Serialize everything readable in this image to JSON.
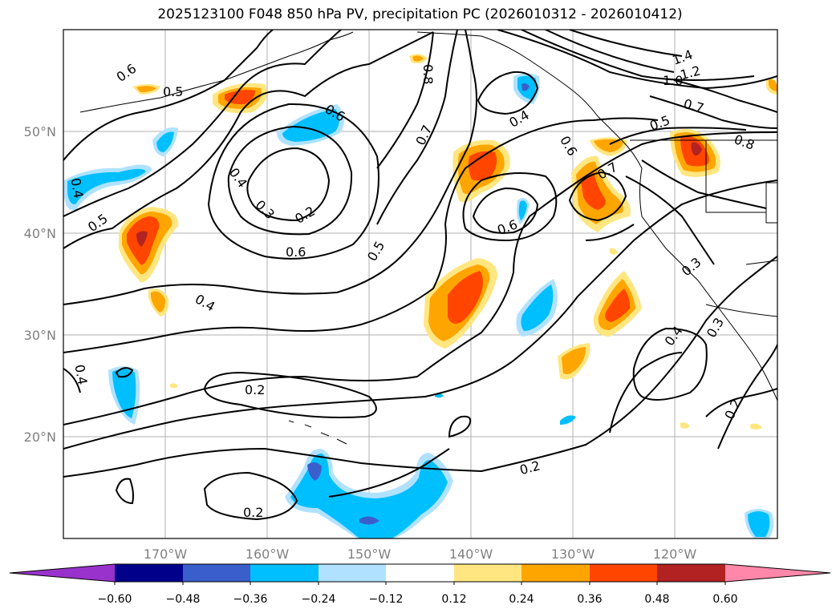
{
  "title": "2025123100 F048 850 hPa PV, precipitation PC (2026010312 - 2026010412)",
  "map": {
    "lon_range": [
      -180,
      -110
    ],
    "lat_range": [
      10,
      60
    ],
    "lat_ticks": [
      {
        "value": 50,
        "label": "50°N"
      },
      {
        "value": 40,
        "label": "40°N"
      },
      {
        "value": 30,
        "label": "30°N"
      },
      {
        "value": 20,
        "label": "20°N"
      }
    ],
    "lon_ticks": [
      {
        "value": -170,
        "label": "170°W"
      },
      {
        "value": -160,
        "label": "160°W"
      },
      {
        "value": -150,
        "label": "150°W"
      },
      {
        "value": -140,
        "label": "140°W"
      },
      {
        "value": -130,
        "label": "130°W"
      },
      {
        "value": -120,
        "label": "120°W"
      }
    ],
    "contour_labels": [
      "0.6",
      "0.5",
      "0.6",
      "0.4",
      "0.3",
      "0.2",
      "0.6",
      "0.5",
      "0.7",
      "0.8",
      "0.4",
      "0.6",
      "0.7",
      "0.6",
      "1.4",
      "1.2",
      "1.0",
      "0.7",
      "0.5",
      "0.8",
      "0.4",
      "0.5",
      "0.4",
      "0.2",
      "0.4",
      "0.3",
      "0.3",
      "0.2",
      "0.2",
      "0.2",
      "0.4"
    ]
  },
  "colorbar": {
    "ticks": [
      "−0.60",
      "−0.48",
      "−0.36",
      "−0.24",
      "−0.12",
      "0.12",
      "0.24",
      "0.36",
      "0.48",
      "0.60"
    ],
    "colors": [
      "#9932cc",
      "#00008b",
      "#3a5fcd",
      "#00bfff",
      "#b0e2ff",
      "#ffffff",
      "#ffe680",
      "#ffa500",
      "#ff4500",
      "#b22222",
      "#ff88aa"
    ]
  }
}
